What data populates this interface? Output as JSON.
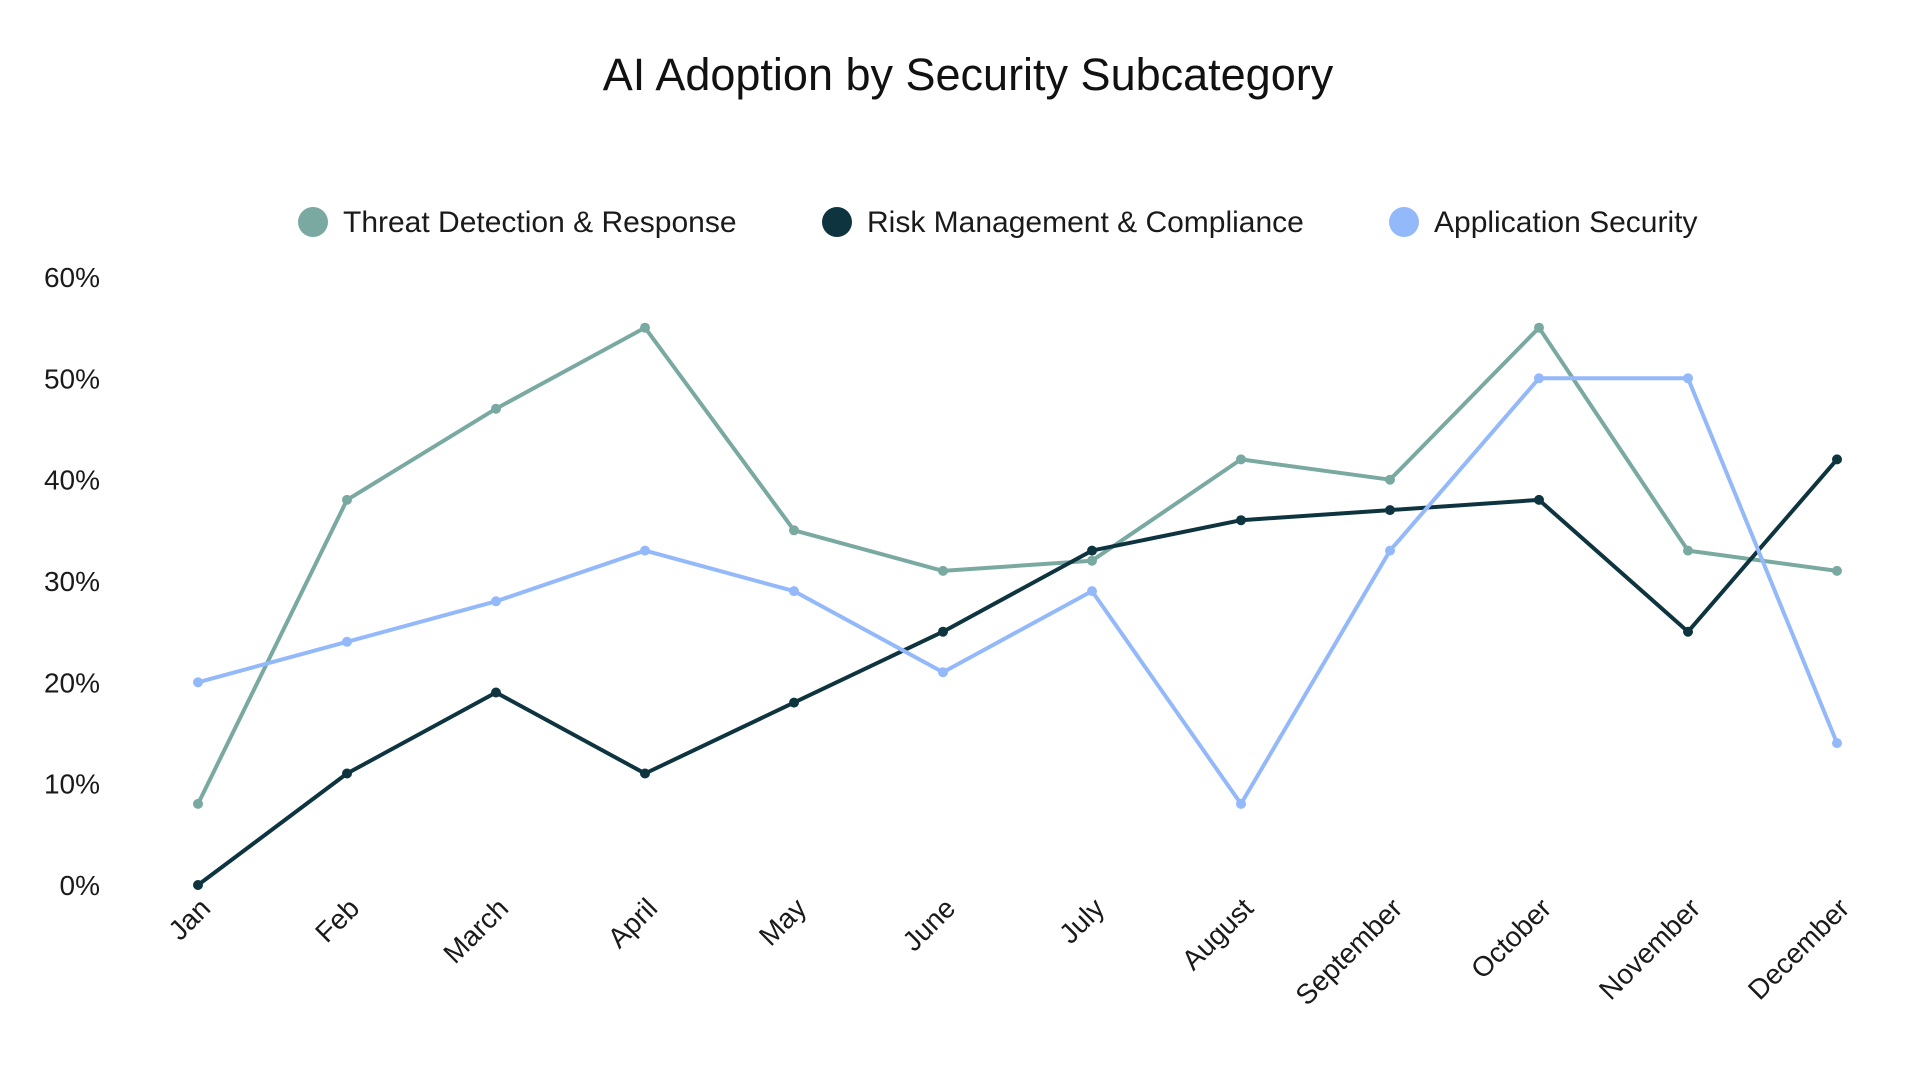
{
  "chart_data": {
    "type": "line",
    "title": "AI Adoption by Security Subcategory",
    "xlabel": "",
    "ylabel": "",
    "categories": [
      "Jan",
      "Feb",
      "March",
      "April",
      "May",
      "June",
      "July",
      "August",
      "September",
      "October",
      "November",
      "December"
    ],
    "ylim": [
      0,
      60
    ],
    "yticks": [
      0,
      10,
      20,
      30,
      40,
      50,
      60
    ],
    "ytick_labels": [
      "0%",
      "10%",
      "20%",
      "30%",
      "40%",
      "50%",
      "60%"
    ],
    "grid": false,
    "legend_position": "top-center",
    "series": [
      {
        "name": "Threat Detection & Response",
        "color": "#7aa9a1",
        "values": [
          8,
          38,
          47,
          55,
          35,
          31,
          32,
          42,
          40,
          55,
          33,
          31
        ]
      },
      {
        "name": "Risk Management & Compliance",
        "color": "#0e3440",
        "values": [
          0,
          11,
          19,
          11,
          18,
          25,
          33,
          36,
          37,
          38,
          25,
          42
        ]
      },
      {
        "name": "Application Security",
        "color": "#94b9fa",
        "values": [
          20,
          24,
          28,
          33,
          29,
          21,
          29,
          8,
          33,
          50,
          50,
          14
        ]
      }
    ]
  }
}
